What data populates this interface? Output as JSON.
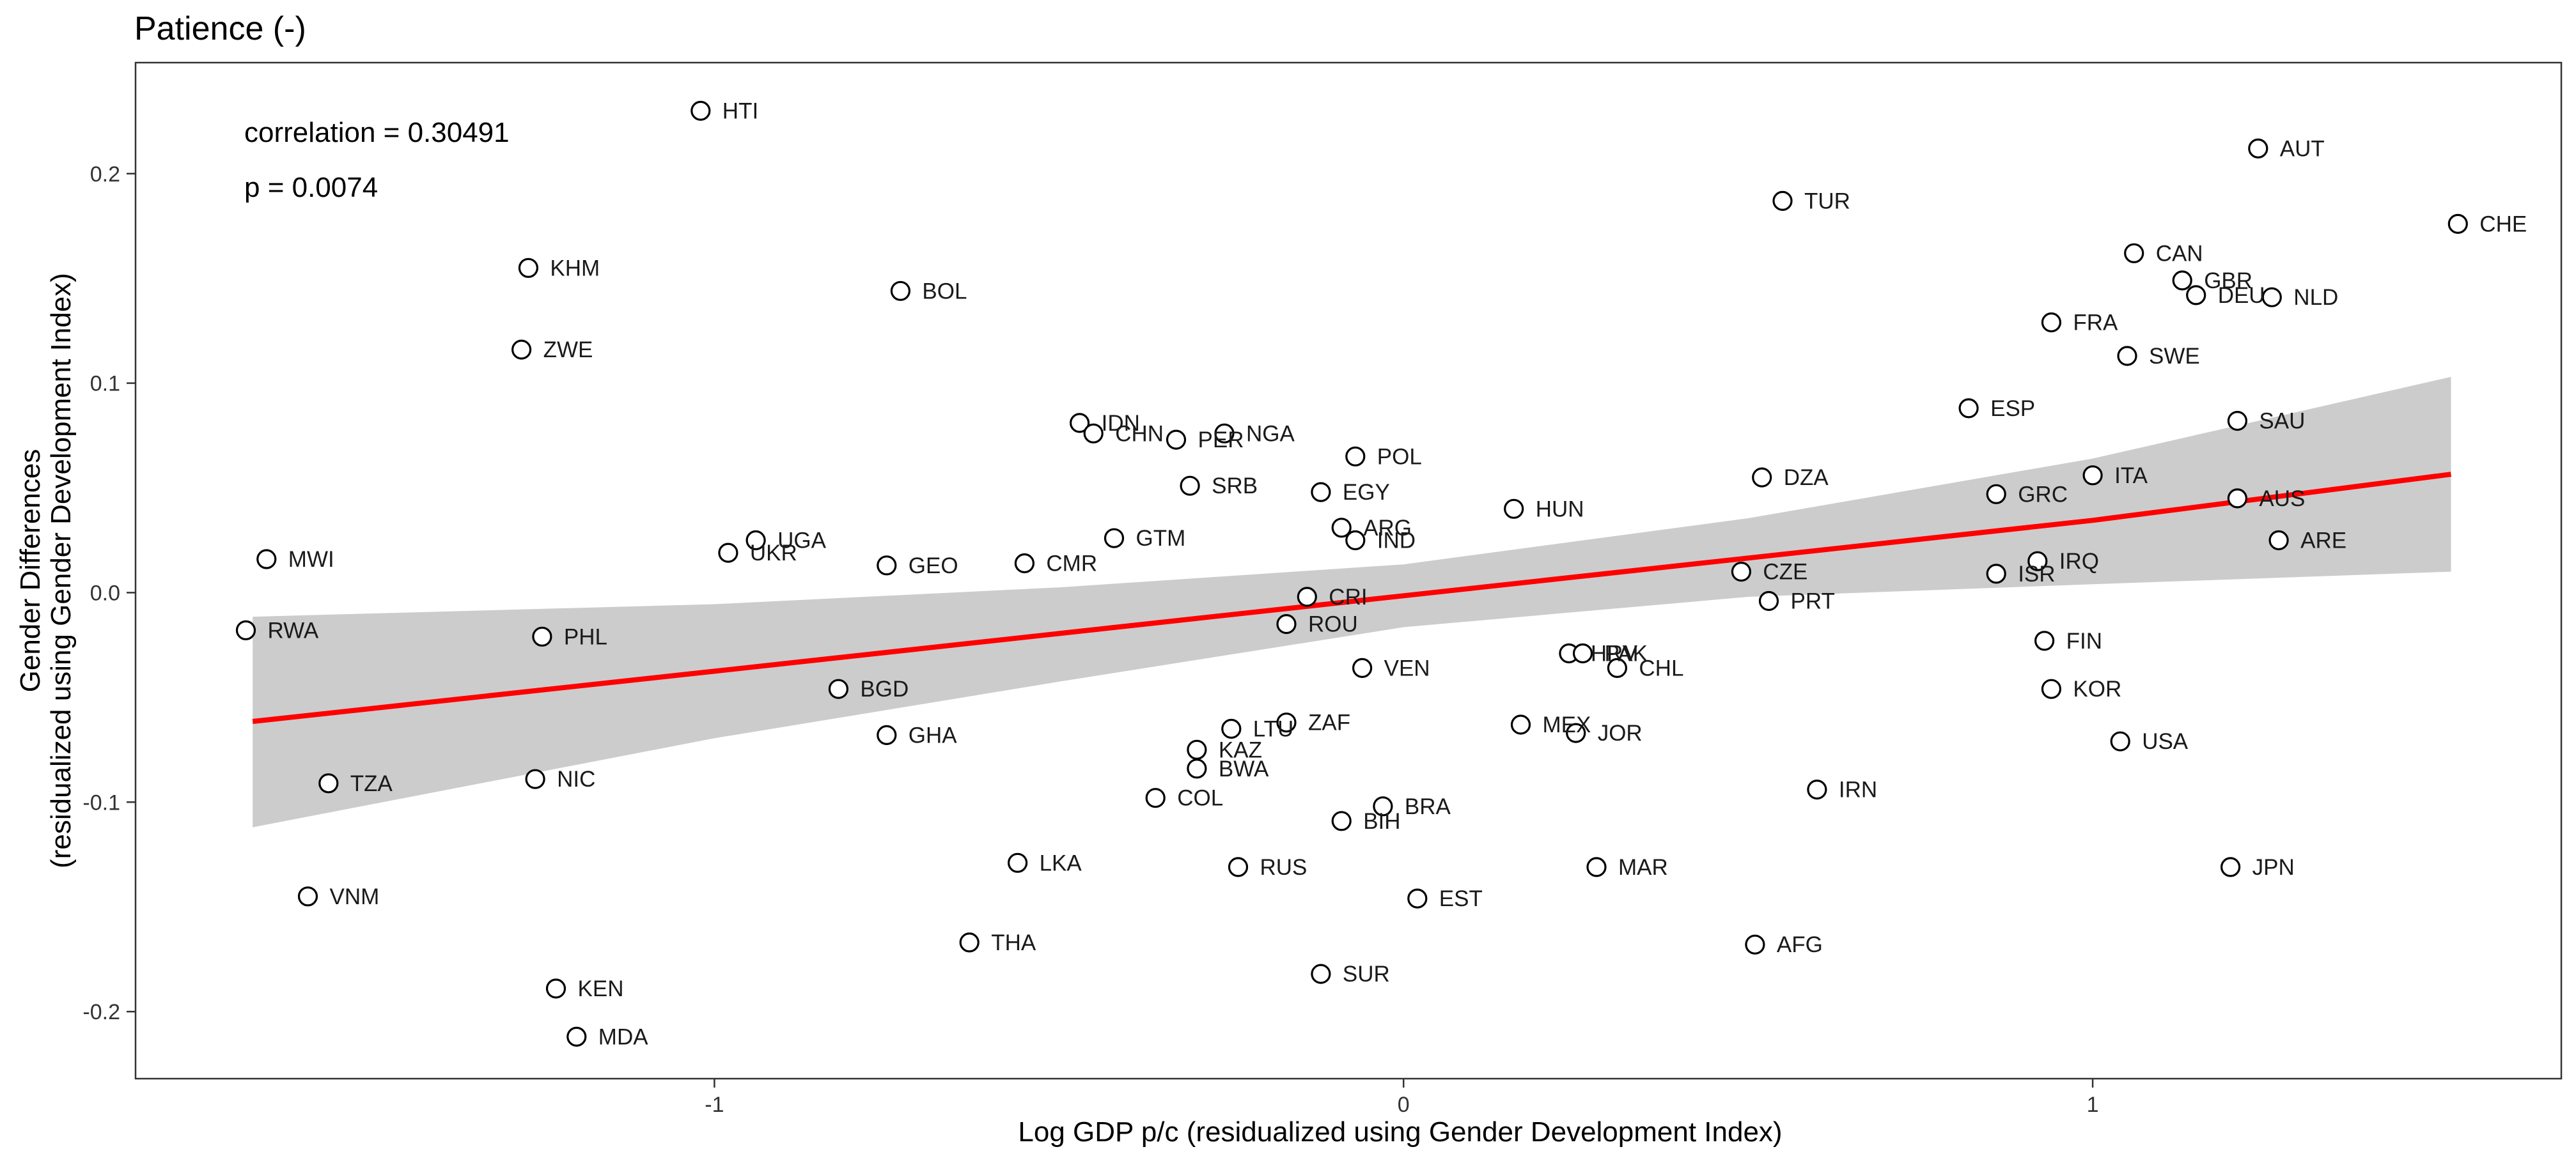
{
  "chart_data": {
    "type": "scatter",
    "title": "Patience (-)",
    "xlabel": "Log GDP p/c (residualized using Gender Development Index)",
    "ylabel_line1": "Gender Differences",
    "ylabel_line2": "(residualized using Gender Development Index)",
    "annotations": {
      "correlation": "correlation = 0.30491",
      "p_value": "p = 0.0074"
    },
    "xlim": [
      -1.84,
      1.68
    ],
    "ylim": [
      -0.232,
      0.253
    ],
    "x_ticks": [
      {
        "value": -1,
        "label": "-1"
      },
      {
        "value": 0,
        "label": "0"
      },
      {
        "value": 1,
        "label": "1"
      }
    ],
    "y_ticks": [
      {
        "value": -0.2,
        "label": "-0.2"
      },
      {
        "value": -0.1,
        "label": "-0.1"
      },
      {
        "value": 0.0,
        "label": "0.0"
      },
      {
        "value": 0.1,
        "label": "0.1"
      },
      {
        "value": 0.2,
        "label": "0.2"
      }
    ],
    "grid": false,
    "fit": {
      "color": "#ff0000",
      "band_color": "#cccccc",
      "x": [
        -1.67,
        -1.0,
        -0.5,
        0.0,
        0.5,
        1.0,
        1.52
      ],
      "y": [
        -0.0615,
        -0.0375,
        -0.0195,
        -0.0015,
        0.0165,
        0.0345,
        0.0565
      ],
      "lower": [
        -0.112,
        -0.0695,
        -0.0425,
        -0.0165,
        -0.002,
        0.004,
        0.01
      ],
      "upper": [
        -0.0115,
        -0.0055,
        0.0025,
        0.0135,
        0.0355,
        0.064,
        0.103
      ]
    },
    "points": [
      {
        "label": "HTI",
        "x": -1.02,
        "y": 0.23
      },
      {
        "label": "AUT",
        "x": 1.24,
        "y": 0.212
      },
      {
        "label": "TUR",
        "x": 0.55,
        "y": 0.187
      },
      {
        "label": "CHE",
        "x": 1.53,
        "y": 0.176
      },
      {
        "label": "CAN",
        "x": 1.06,
        "y": 0.162
      },
      {
        "label": "KHM",
        "x": -1.27,
        "y": 0.155
      },
      {
        "label": "GBR",
        "x": 1.13,
        "y": 0.149
      },
      {
        "label": "BOL",
        "x": -0.73,
        "y": 0.144
      },
      {
        "label": "DEU",
        "x": 1.15,
        "y": 0.142
      },
      {
        "label": "NLD",
        "x": 1.26,
        "y": 0.141
      },
      {
        "label": "FRA",
        "x": 0.94,
        "y": 0.129
      },
      {
        "label": "ZWE",
        "x": -1.28,
        "y": 0.116
      },
      {
        "label": "SWE",
        "x": 1.05,
        "y": 0.113
      },
      {
        "label": "ESP",
        "x": 0.82,
        "y": 0.088
      },
      {
        "label": "SAU",
        "x": 1.21,
        "y": 0.082
      },
      {
        "label": "IDN",
        "x": -0.47,
        "y": 0.081
      },
      {
        "label": "CHN",
        "x": -0.45,
        "y": 0.076
      },
      {
        "label": "NGA",
        "x": -0.26,
        "y": 0.076
      },
      {
        "label": "PER",
        "x": -0.33,
        "y": 0.073
      },
      {
        "label": "POL",
        "x": -0.07,
        "y": 0.065
      },
      {
        "label": "ITA",
        "x": 1.0,
        "y": 0.056
      },
      {
        "label": "DZA",
        "x": 0.52,
        "y": 0.055
      },
      {
        "label": "SRB",
        "x": -0.31,
        "y": 0.051
      },
      {
        "label": "EGY",
        "x": -0.12,
        "y": 0.048
      },
      {
        "label": "GRC",
        "x": 0.86,
        "y": 0.047
      },
      {
        "label": "AUS",
        "x": 1.21,
        "y": 0.045
      },
      {
        "label": "HUN",
        "x": 0.16,
        "y": 0.04
      },
      {
        "label": "ARG",
        "x": -0.09,
        "y": 0.031
      },
      {
        "label": "UGA",
        "x": -0.94,
        "y": 0.025
      },
      {
        "label": "GTM",
        "x": -0.42,
        "y": 0.026
      },
      {
        "label": "IND",
        "x": -0.07,
        "y": 0.025
      },
      {
        "label": "ARE",
        "x": 1.27,
        "y": 0.025
      },
      {
        "label": "UKR",
        "x": -0.98,
        "y": 0.019
      },
      {
        "label": "MWI",
        "x": -1.65,
        "y": 0.016
      },
      {
        "label": "IRQ",
        "x": 0.92,
        "y": 0.015
      },
      {
        "label": "GEO",
        "x": -0.75,
        "y": 0.013
      },
      {
        "label": "CMR",
        "x": -0.55,
        "y": 0.014
      },
      {
        "label": "CZE",
        "x": 0.49,
        "y": 0.01
      },
      {
        "label": "ISR",
        "x": 0.86,
        "y": 0.009
      },
      {
        "label": "CRI",
        "x": -0.14,
        "y": -0.002
      },
      {
        "label": "PRT",
        "x": 0.53,
        "y": -0.004
      },
      {
        "label": "ROU",
        "x": -0.17,
        "y": -0.015
      },
      {
        "label": "RWA",
        "x": -1.68,
        "y": -0.018
      },
      {
        "label": "PHL",
        "x": -1.25,
        "y": -0.021
      },
      {
        "label": "FIN",
        "x": 0.93,
        "y": -0.023
      },
      {
        "label": "HRV",
        "x": 0.24,
        "y": -0.029
      },
      {
        "label": "PAK",
        "x": 0.26,
        "y": -0.029
      },
      {
        "label": "CHL",
        "x": 0.31,
        "y": -0.036
      },
      {
        "label": "VEN",
        "x": -0.06,
        "y": -0.036
      },
      {
        "label": "BGD",
        "x": -0.82,
        "y": -0.046
      },
      {
        "label": "KOR",
        "x": 0.94,
        "y": -0.046
      },
      {
        "label": "ZAF",
        "x": -0.17,
        "y": -0.062
      },
      {
        "label": "MEX",
        "x": 0.17,
        "y": -0.063
      },
      {
        "label": "LTU",
        "x": -0.25,
        "y": -0.065
      },
      {
        "label": "JOR",
        "x": 0.25,
        "y": -0.067
      },
      {
        "label": "GHA",
        "x": -0.75,
        "y": -0.068
      },
      {
        "label": "USA",
        "x": 1.04,
        "y": -0.071
      },
      {
        "label": "KAZ",
        "x": -0.3,
        "y": -0.075
      },
      {
        "label": "BWA",
        "x": -0.3,
        "y": -0.084
      },
      {
        "label": "TZA",
        "x": -1.56,
        "y": -0.091
      },
      {
        "label": "NIC",
        "x": -1.26,
        "y": -0.089
      },
      {
        "label": "IRN",
        "x": 0.6,
        "y": -0.094
      },
      {
        "label": "COL",
        "x": -0.36,
        "y": -0.098
      },
      {
        "label": "BRA",
        "x": -0.03,
        "y": -0.102
      },
      {
        "label": "BIH",
        "x": -0.09,
        "y": -0.109
      },
      {
        "label": "LKA",
        "x": -0.56,
        "y": -0.129
      },
      {
        "label": "RUS",
        "x": -0.24,
        "y": -0.131
      },
      {
        "label": "MAR",
        "x": 0.28,
        "y": -0.131
      },
      {
        "label": "JPN",
        "x": 1.2,
        "y": -0.131
      },
      {
        "label": "VNM",
        "x": -1.59,
        "y": -0.145
      },
      {
        "label": "EST",
        "x": 0.02,
        "y": -0.146
      },
      {
        "label": "THA",
        "x": -0.63,
        "y": -0.167
      },
      {
        "label": "AFG",
        "x": 0.51,
        "y": -0.168
      },
      {
        "label": "SUR",
        "x": -0.12,
        "y": -0.182
      },
      {
        "label": "KEN",
        "x": -1.23,
        "y": -0.189
      },
      {
        "label": "MDA",
        "x": -1.2,
        "y": -0.212
      }
    ]
  }
}
